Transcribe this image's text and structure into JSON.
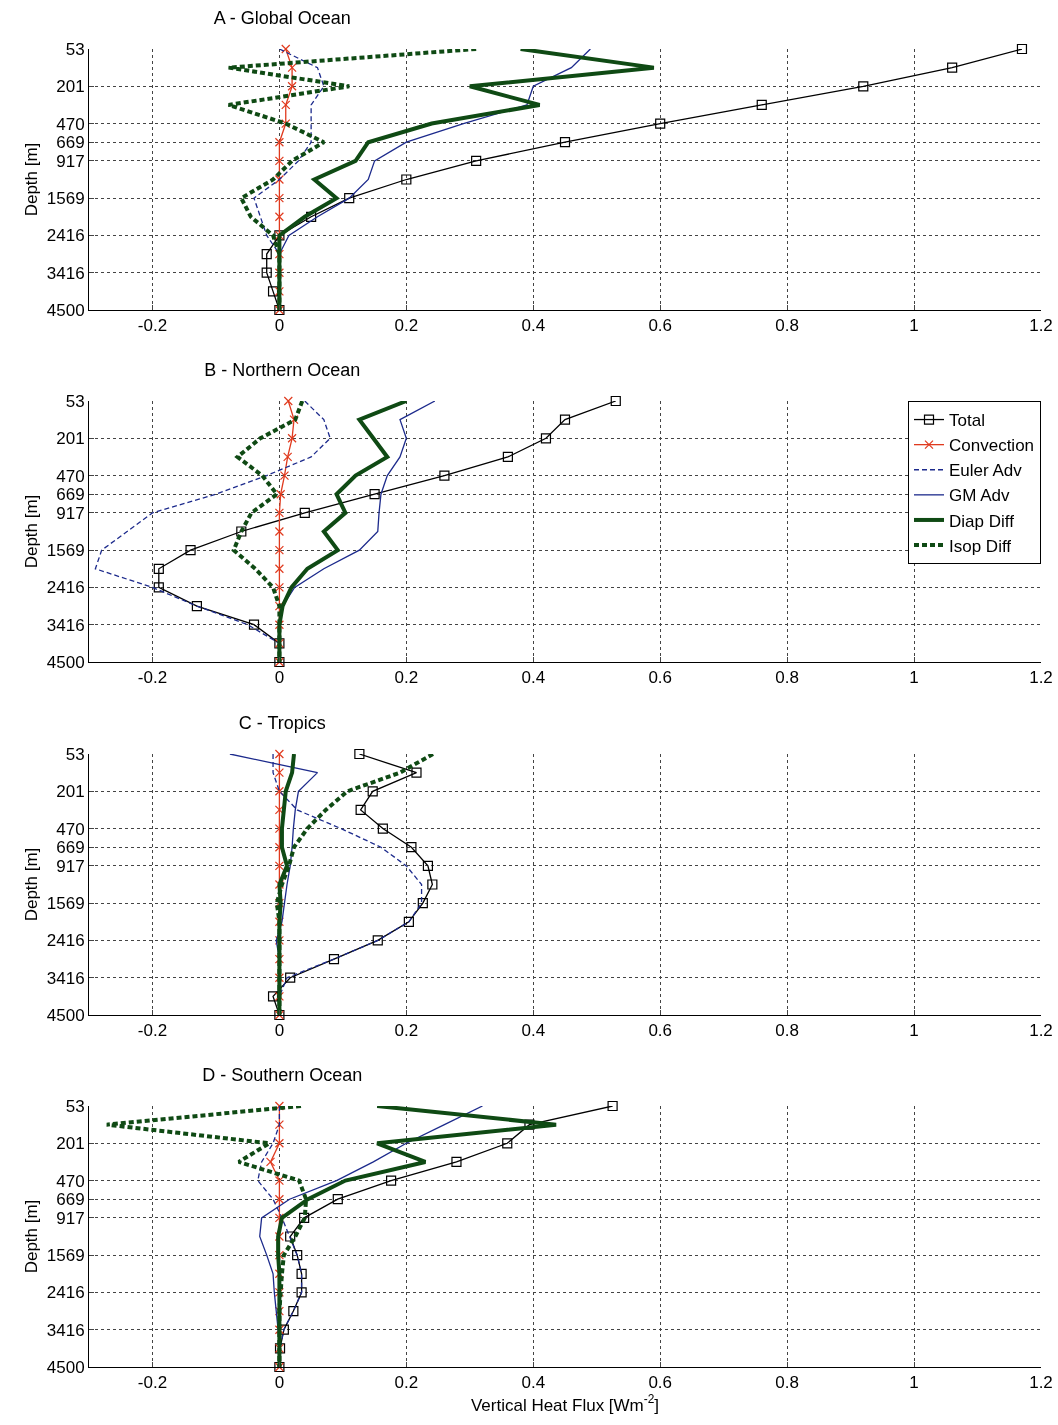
{
  "chart_data": [
    {
      "type": "line",
      "title": "A - Global Ocean",
      "ylabel": "Depth [m]",
      "orientation": "horizontal",
      "categories": [
        "53",
        null,
        "201",
        null,
        "470",
        "669",
        "917",
        null,
        "1569",
        null,
        "2416",
        null,
        "3416",
        null,
        "4500"
      ],
      "xlim": [
        -0.3,
        1.2
      ],
      "xticks": [
        -0.2,
        0,
        0.2,
        0.4,
        0.6,
        0.8,
        1,
        1.2
      ],
      "grid": true,
      "legend": false,
      "series": [
        {
          "color": "#000000",
          "marker": "square",
          "line_style": "solid",
          "values": [
            1.17,
            1.06,
            0.92,
            0.76,
            0.6,
            0.45,
            0.31,
            0.2,
            0.11,
            0.05,
            0.0,
            -0.02,
            -0.02,
            -0.01,
            0
          ]
        },
        {
          "color": "#e03a1e",
          "marker": "cross",
          "line_style": "solid",
          "values": [
            0.01,
            0.02,
            0.02,
            0.01,
            0.01,
            0,
            0,
            0,
            0,
            0,
            0,
            0,
            0,
            0,
            0
          ]
        },
        {
          "color": "#1c2a8c",
          "marker": "none",
          "line_style": "dashed",
          "values": [
            0,
            0.06,
            0.07,
            0.05,
            0.05,
            0.05,
            0.03,
            0,
            -0.04,
            -0.03,
            -0.02,
            0,
            null,
            null,
            null
          ]
        },
        {
          "color": "#1c2a8c",
          "marker": "none",
          "line_style": "solid",
          "values": [
            0.49,
            0.46,
            0.4,
            0.39,
            0.29,
            0.2,
            0.15,
            0.14,
            0.11,
            0.06,
            0.015,
            0,
            0,
            null,
            null
          ]
        },
        {
          "color": "#0f4a14",
          "marker": "none",
          "line_style": "solid",
          "values": [
            0.38,
            0.59,
            0.3,
            0.41,
            0.24,
            0.14,
            0.12,
            0.055,
            0.09,
            0.04,
            0,
            0,
            0,
            0,
            0
          ]
        },
        {
          "color": "#0f4a14",
          "marker": "none",
          "line_style": "dashed",
          "values": [
            0.31,
            -0.08,
            0.11,
            -0.08,
            0.01,
            0.07,
            0.02,
            -0.01,
            -0.06,
            -0.045,
            -0.01,
            0,
            0,
            0,
            0
          ]
        }
      ]
    },
    {
      "type": "line",
      "title": "B - Northern Ocean",
      "ylabel": "Depth [m]",
      "orientation": "horizontal",
      "categories": [
        "53",
        null,
        "201",
        null,
        "470",
        "669",
        "917",
        null,
        "1569",
        null,
        "2416",
        null,
        "3416",
        null,
        "4500"
      ],
      "xlim": [
        -0.3,
        1.2
      ],
      "xticks": [
        -0.2,
        0,
        0.2,
        0.4,
        0.6,
        0.8,
        1,
        1.2
      ],
      "grid": true,
      "legend": "top right",
      "series": [
        {
          "name": "Total",
          "color": "#000000",
          "marker": "square",
          "line_style": "solid",
          "values": [
            0.53,
            0.45,
            0.42,
            0.36,
            0.26,
            0.15,
            0.04,
            -0.06,
            -0.14,
            -0.19,
            -0.19,
            -0.13,
            -0.04,
            0,
            0
          ]
        },
        {
          "name": "Convection",
          "color": "#e03a1e",
          "marker": "cross",
          "line_style": "solid",
          "values": [
            0.014,
            0.023,
            0.02,
            0.013,
            0.008,
            0.002,
            0,
            0,
            0,
            0,
            0,
            0,
            0,
            0,
            0
          ]
        },
        {
          "name": "Euler Adv",
          "color": "#1c2a8c",
          "marker": "none",
          "line_style": "dashed",
          "values": [
            0.04,
            0.07,
            0.08,
            0.05,
            -0.02,
            -0.1,
            -0.2,
            -0.24,
            -0.28,
            -0.29,
            -0.2,
            -0.13,
            -0.05,
            0,
            0
          ]
        },
        {
          "name": "GM Adv",
          "color": "#1c2a8c",
          "marker": "none",
          "line_style": "solid",
          "values": [
            0.245,
            0.19,
            0.2,
            0.19,
            0.17,
            0.16,
            0.157,
            0.155,
            0.126,
            0.07,
            0.024,
            0.005,
            0,
            null,
            null
          ]
        },
        {
          "name": "Diap Diff",
          "color": "#0f4a14",
          "marker": "none",
          "line_style": "solid",
          "values": [
            0.2,
            0.126,
            0.148,
            0.17,
            0.12,
            0.09,
            0.104,
            0.07,
            0.092,
            0.044,
            0.019,
            0.005,
            0,
            0,
            0
          ]
        },
        {
          "name": "Isop Diff",
          "color": "#0f4a14",
          "marker": "none",
          "line_style": "dashed",
          "values": [
            0.036,
            0.025,
            -0.03,
            -0.066,
            -0.027,
            -0.004,
            -0.044,
            -0.06,
            -0.072,
            -0.038,
            -0.01,
            0,
            0,
            0,
            0
          ]
        }
      ]
    },
    {
      "type": "line",
      "title": "C - Tropics",
      "ylabel": "Depth [m]",
      "orientation": "horizontal",
      "categories": [
        "53",
        null,
        "201",
        null,
        "470",
        "669",
        "917",
        null,
        "1569",
        null,
        "2416",
        null,
        "3416",
        null,
        "4500"
      ],
      "xlim": [
        -0.3,
        1.2
      ],
      "xticks": [
        -0.2,
        0,
        0.2,
        0.4,
        0.6,
        0.8,
        1,
        1.2
      ],
      "grid": true,
      "legend": false,
      "series": [
        {
          "color": "#000000",
          "marker": "square",
          "line_style": "solid",
          "values": [
            0.126,
            0.216,
            0.147,
            0.128,
            0.163,
            0.208,
            0.234,
            0.241,
            0.226,
            0.204,
            0.155,
            0.086,
            0.017,
            -0.01,
            0
          ]
        },
        {
          "color": "#e03a1e",
          "marker": "cross",
          "line_style": "solid",
          "values": [
            0,
            0,
            0,
            0,
            0,
            0,
            0,
            0,
            0,
            0,
            0,
            0,
            0,
            0,
            0
          ]
        },
        {
          "color": "#1c2a8c",
          "marker": "none",
          "line_style": "dashed",
          "values": [
            -0.01,
            -0.01,
            0,
            0.028,
            0.097,
            0.16,
            0.2,
            0.224,
            0.224,
            0.204,
            0.155,
            0.086,
            0.012,
            0,
            0
          ]
        },
        {
          "color": "#1c2a8c",
          "marker": "none",
          "line_style": "solid",
          "values": [
            -0.078,
            0.06,
            0.03,
            0.025,
            0.022,
            0.02,
            0.017,
            0.012,
            0.008,
            0.004,
            -0.005,
            0,
            null,
            null,
            null
          ]
        },
        {
          "color": "#0f4a14",
          "marker": "none",
          "line_style": "solid",
          "values": [
            0.023,
            0.02,
            0.01,
            0.007,
            0.004,
            0.004,
            0.012,
            0,
            0.002,
            0,
            0,
            0,
            0,
            0,
            0
          ]
        },
        {
          "color": "#0f4a14",
          "marker": "none",
          "line_style": "dashed",
          "values": [
            0.242,
            0.19,
            0.107,
            0.073,
            0.044,
            0.023,
            0.015,
            0.004,
            -0.004,
            0,
            0,
            0,
            0,
            0,
            0
          ]
        }
      ]
    },
    {
      "type": "line",
      "title": "D - Southern Ocean",
      "xlabel": "Vertical Heat Flux [Wm$^{-2}$]",
      "ylabel": "Depth [m]",
      "orientation": "horizontal",
      "categories": [
        "53",
        null,
        "201",
        null,
        "470",
        "669",
        "917",
        null,
        "1569",
        null,
        "2416",
        null,
        "3416",
        null,
        "4500"
      ],
      "xlim": [
        -0.3,
        1.2
      ],
      "xticks": [
        -0.2,
        0,
        0.2,
        0.4,
        0.6,
        0.8,
        1,
        1.2
      ],
      "grid": true,
      "legend": false,
      "series": [
        {
          "color": "#000000",
          "marker": "square",
          "line_style": "solid",
          "values": [
            0.525,
            0.394,
            0.359,
            0.279,
            0.176,
            0.092,
            0.039,
            0.017,
            0.028,
            0.035,
            0.035,
            0.022,
            0.007,
            0.001,
            0
          ]
        },
        {
          "color": "#e03a1e",
          "marker": "cross",
          "line_style": "solid",
          "values": [
            0,
            0,
            0,
            -0.014,
            0,
            0,
            0,
            0,
            0,
            0,
            0,
            0,
            0,
            0,
            0
          ]
        },
        {
          "color": "#1c2a8c",
          "marker": "none",
          "line_style": "dashed",
          "values": [
            0,
            0,
            -0.01,
            -0.028,
            -0.034,
            -0.01,
            0.004,
            0.016,
            0.028,
            0.035,
            0.035,
            0.022,
            0.007,
            0.001,
            0
          ]
        },
        {
          "color": "#1c2a8c",
          "marker": "none",
          "line_style": "solid",
          "values": [
            0.32,
            0.26,
            0.2,
            0.148,
            0.09,
            0.016,
            -0.028,
            -0.031,
            -0.02,
            -0.01,
            -0.008,
            -0.005,
            -0.002,
            0,
            0
          ]
        },
        {
          "color": "#0f4a14",
          "marker": "none",
          "line_style": "solid",
          "values": [
            0.154,
            0.436,
            0.154,
            0.23,
            0.104,
            0.045,
            0.004,
            -0.002,
            -0.002,
            0,
            0,
            0,
            0,
            0,
            0
          ]
        },
        {
          "color": "#0f4a14",
          "marker": "none",
          "line_style": "dashed",
          "values": [
            0.034,
            -0.272,
            -0.016,
            -0.064,
            0.031,
            0.042,
            0.04,
            0.025,
            0.007,
            0.004,
            0.002,
            0,
            0,
            0,
            0
          ]
        }
      ]
    }
  ]
}
